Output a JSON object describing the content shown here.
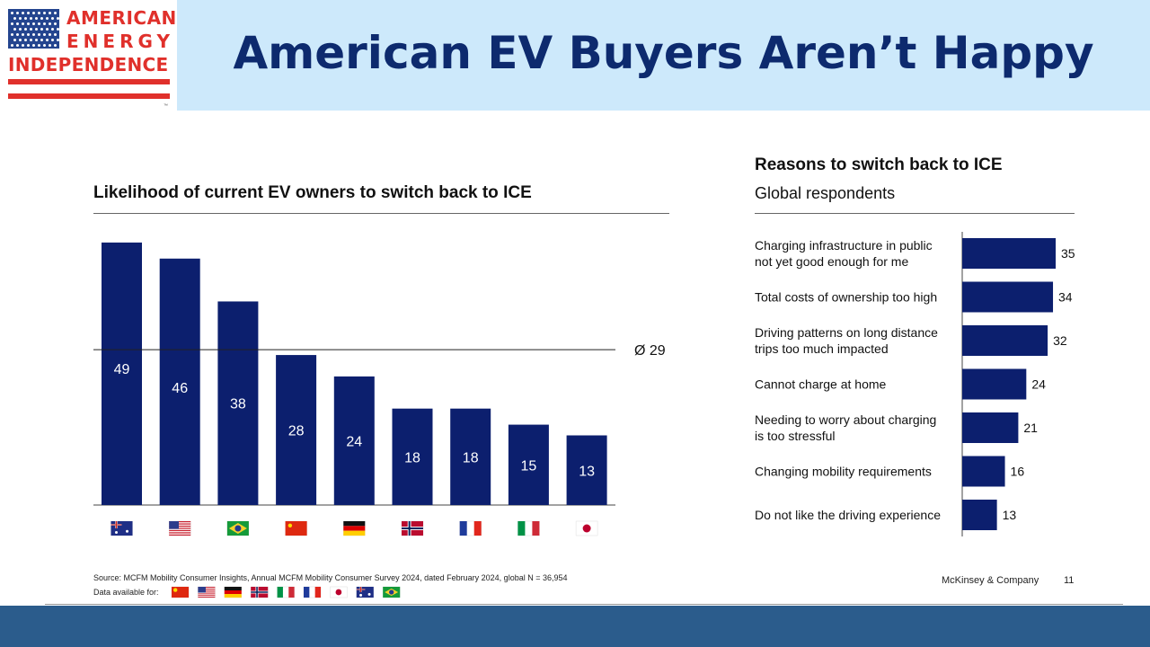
{
  "logo": {
    "line1": "AMERICAN",
    "line2": "ENERGY",
    "line3": "INDEPENDENCE",
    "tm": "™"
  },
  "title": "American EV Buyers Aren’t Happy",
  "colors": {
    "bar": "#0c1f6e",
    "header_band": "#cde9fb",
    "title": "#0d2a6e",
    "logo_red": "#e0302b",
    "footer": "#2b5c8c"
  },
  "chart_data": [
    {
      "type": "bar",
      "title": "Likelihood of current EV owners to switch back to ICE",
      "categories": [
        "Australia",
        "United States",
        "Brazil",
        "China",
        "Germany",
        "Norway",
        "France",
        "Italy",
        "Japan"
      ],
      "category_icons": [
        "flag-australia",
        "flag-usa",
        "flag-brazil",
        "flag-china",
        "flag-germany",
        "flag-norway",
        "flag-france",
        "flag-italy",
        "flag-japan"
      ],
      "values": [
        49,
        46,
        38,
        28,
        24,
        18,
        18,
        15,
        13
      ],
      "ylim": [
        0,
        52
      ],
      "average": {
        "value": 29,
        "label": "Ø 29"
      },
      "grid": false
    },
    {
      "type": "bar",
      "orientation": "horizontal",
      "title": "Reasons to switch back to ICE",
      "subtitle": "Global respondents",
      "categories": [
        [
          "Charging infrastructure in public",
          "not yet good enough for me"
        ],
        [
          "Total costs of ownership too high"
        ],
        [
          "Driving patterns on long distance",
          "trips too much impacted"
        ],
        [
          "Cannot charge at home"
        ],
        [
          "Needing to worry about charging",
          "is too stressful"
        ],
        [
          "Changing mobility requirements"
        ],
        [
          "Do not like the driving experience"
        ]
      ],
      "values": [
        35,
        34,
        32,
        24,
        21,
        16,
        13
      ],
      "xlim": [
        0,
        35
      ],
      "grid": false
    }
  ],
  "footer": {
    "source": "Source: MCFM Mobility Consumer Insights, Annual MCFM Mobility Consumer Survey 2024, dated February 2024, global N = 36,954",
    "data_available_label": "Data available for:",
    "data_available_icons": [
      "flag-china",
      "flag-usa",
      "flag-germany",
      "flag-norway",
      "flag-italy",
      "flag-france",
      "flag-japan",
      "flag-australia",
      "flag-brazil"
    ],
    "company": "McKinsey & Company",
    "page": "11"
  }
}
